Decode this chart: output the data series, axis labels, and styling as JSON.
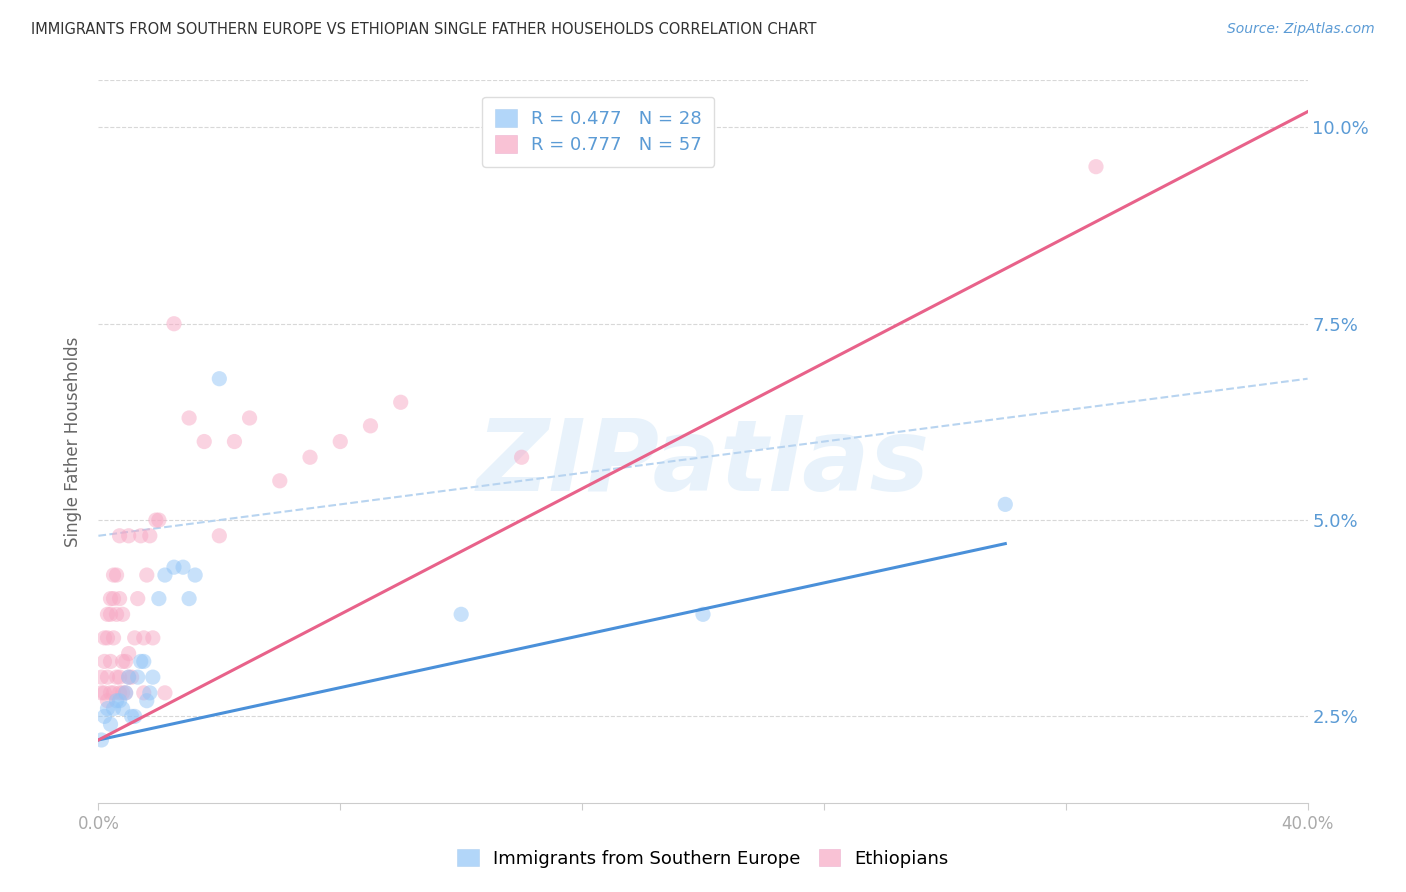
{
  "title": "IMMIGRANTS FROM SOUTHERN EUROPE VS ETHIOPIAN SINGLE FATHER HOUSEHOLDS CORRELATION CHART",
  "source": "Source: ZipAtlas.com",
  "ylabel": "Single Father Households",
  "xlim": [
    0.0,
    0.4
  ],
  "ylim": [
    0.014,
    0.106
  ],
  "xticks": [
    0.0,
    0.08,
    0.16,
    0.24,
    0.32,
    0.4
  ],
  "xtick_labels": [
    "0.0%",
    "",
    "",
    "",
    "",
    "40.0%"
  ],
  "yticks": [
    0.025,
    0.05,
    0.075,
    0.1
  ],
  "ytick_labels": [
    "2.5%",
    "5.0%",
    "7.5%",
    "10.0%"
  ],
  "legend_label_blue": "R = 0.477   N = 28",
  "legend_label_pink": "R = 0.777   N = 57",
  "legend_label_blue_bottom": "Immigrants from Southern Europe",
  "legend_label_pink_bottom": "Ethiopians",
  "watermark": "ZIPatlas",
  "blue_color": "#92c5f7",
  "pink_color": "#f7a8c4",
  "blue_line_color": "#4a90d9",
  "pink_line_color": "#e8628a",
  "dashed_line_color": "#b8d4f0",
  "blue_scatter": [
    [
      0.001,
      0.022
    ],
    [
      0.002,
      0.025
    ],
    [
      0.003,
      0.026
    ],
    [
      0.004,
      0.024
    ],
    [
      0.005,
      0.026
    ],
    [
      0.006,
      0.027
    ],
    [
      0.007,
      0.027
    ],
    [
      0.008,
      0.026
    ],
    [
      0.009,
      0.028
    ],
    [
      0.01,
      0.03
    ],
    [
      0.011,
      0.025
    ],
    [
      0.012,
      0.025
    ],
    [
      0.013,
      0.03
    ],
    [
      0.014,
      0.032
    ],
    [
      0.015,
      0.032
    ],
    [
      0.016,
      0.027
    ],
    [
      0.017,
      0.028
    ],
    [
      0.018,
      0.03
    ],
    [
      0.02,
      0.04
    ],
    [
      0.022,
      0.043
    ],
    [
      0.025,
      0.044
    ],
    [
      0.028,
      0.044
    ],
    [
      0.03,
      0.04
    ],
    [
      0.032,
      0.043
    ],
    [
      0.04,
      0.068
    ],
    [
      0.12,
      0.038
    ],
    [
      0.2,
      0.038
    ],
    [
      0.3,
      0.052
    ]
  ],
  "pink_scatter": [
    [
      0.001,
      0.028
    ],
    [
      0.001,
      0.03
    ],
    [
      0.002,
      0.032
    ],
    [
      0.002,
      0.028
    ],
    [
      0.002,
      0.035
    ],
    [
      0.003,
      0.027
    ],
    [
      0.003,
      0.03
    ],
    [
      0.003,
      0.035
    ],
    [
      0.003,
      0.038
    ],
    [
      0.004,
      0.028
    ],
    [
      0.004,
      0.032
    ],
    [
      0.004,
      0.038
    ],
    [
      0.004,
      0.04
    ],
    [
      0.005,
      0.028
    ],
    [
      0.005,
      0.035
    ],
    [
      0.005,
      0.04
    ],
    [
      0.005,
      0.043
    ],
    [
      0.006,
      0.03
    ],
    [
      0.006,
      0.038
    ],
    [
      0.006,
      0.043
    ],
    [
      0.007,
      0.028
    ],
    [
      0.007,
      0.03
    ],
    [
      0.007,
      0.04
    ],
    [
      0.007,
      0.048
    ],
    [
      0.008,
      0.028
    ],
    [
      0.008,
      0.032
    ],
    [
      0.008,
      0.038
    ],
    [
      0.009,
      0.028
    ],
    [
      0.009,
      0.032
    ],
    [
      0.01,
      0.03
    ],
    [
      0.01,
      0.033
    ],
    [
      0.01,
      0.048
    ],
    [
      0.011,
      0.03
    ],
    [
      0.012,
      0.035
    ],
    [
      0.013,
      0.04
    ],
    [
      0.014,
      0.048
    ],
    [
      0.015,
      0.028
    ],
    [
      0.015,
      0.035
    ],
    [
      0.016,
      0.043
    ],
    [
      0.017,
      0.048
    ],
    [
      0.018,
      0.035
    ],
    [
      0.019,
      0.05
    ],
    [
      0.02,
      0.05
    ],
    [
      0.022,
      0.028
    ],
    [
      0.025,
      0.075
    ],
    [
      0.03,
      0.063
    ],
    [
      0.035,
      0.06
    ],
    [
      0.04,
      0.048
    ],
    [
      0.045,
      0.06
    ],
    [
      0.05,
      0.063
    ],
    [
      0.06,
      0.055
    ],
    [
      0.07,
      0.058
    ],
    [
      0.08,
      0.06
    ],
    [
      0.09,
      0.062
    ],
    [
      0.1,
      0.065
    ],
    [
      0.14,
      0.058
    ],
    [
      0.33,
      0.095
    ]
  ],
  "blue_line_x": [
    0.0,
    0.3
  ],
  "blue_line_y": [
    0.022,
    0.047
  ],
  "pink_line_x": [
    0.0,
    0.4
  ],
  "pink_line_y": [
    0.022,
    0.102
  ],
  "dashed_line_x": [
    0.0,
    0.4
  ],
  "dashed_line_y": [
    0.048,
    0.068
  ],
  "grid_color": "#d8d8d8",
  "background_color": "#ffffff",
  "title_color": "#333333",
  "source_color": "#5b9bd5",
  "axis_label_color": "#5b9bd5",
  "ylabel_color": "#666666",
  "xticklabel_color": "#aaaaaa",
  "legend_text_color": "#5b9bd5"
}
